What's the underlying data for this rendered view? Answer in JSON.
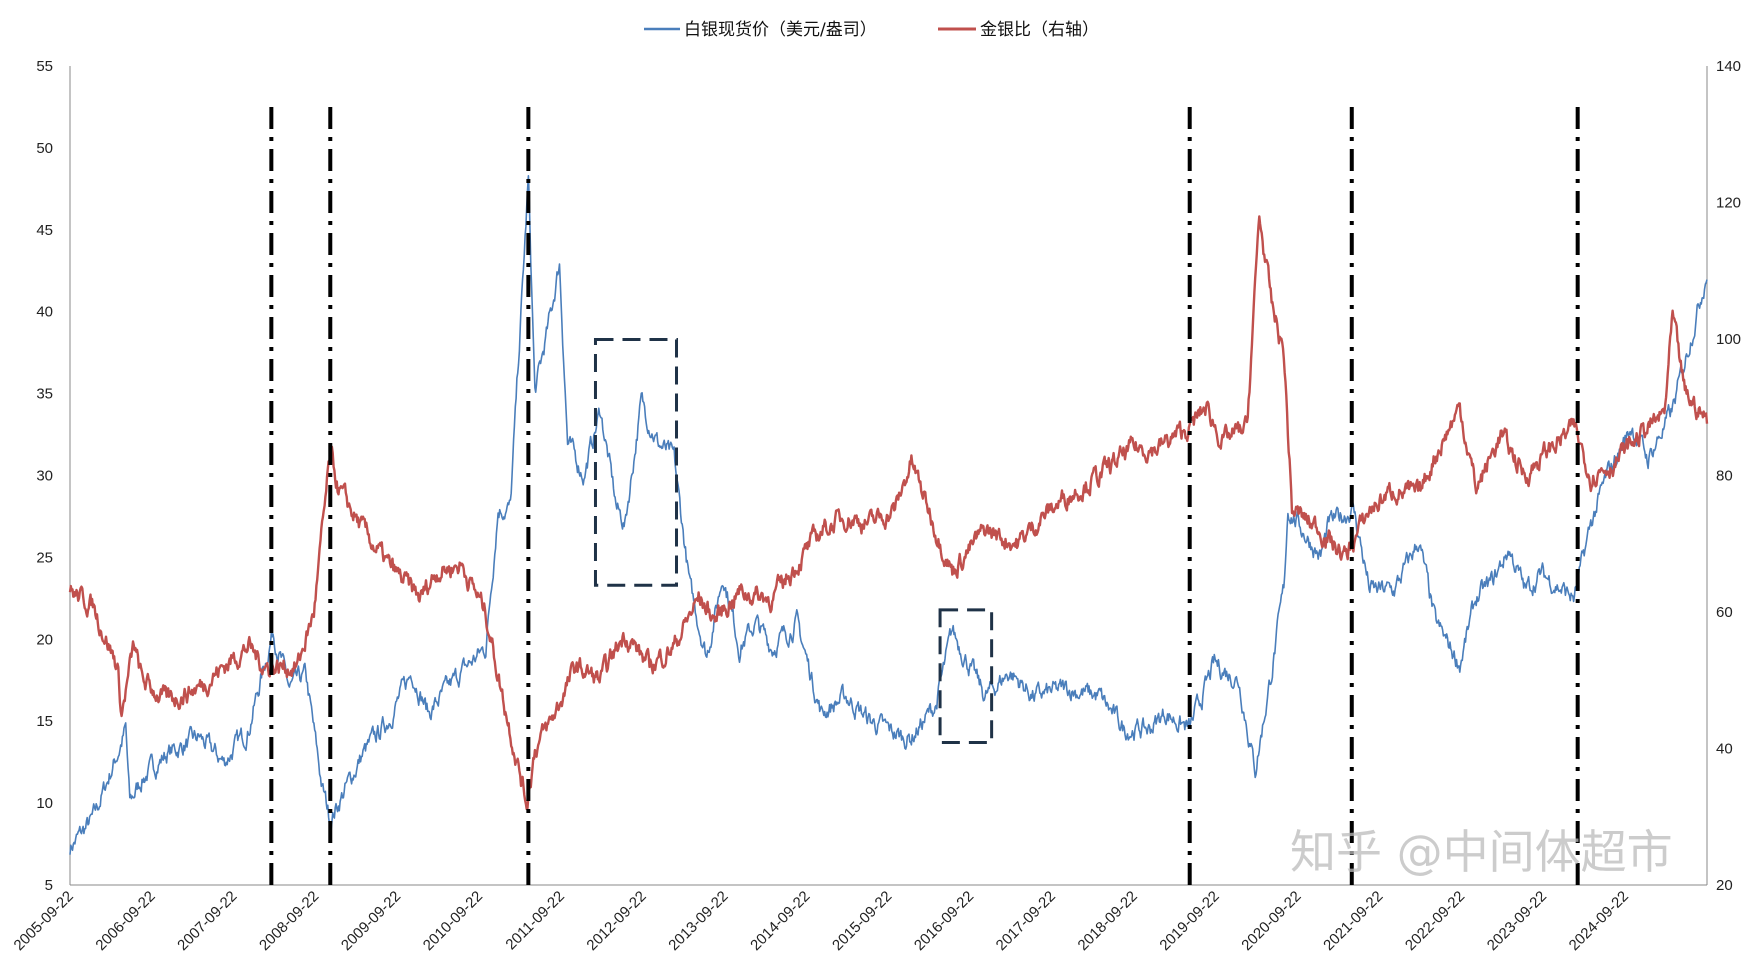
{
  "chart_data": {
    "type": "line",
    "title": "",
    "xlabel": "",
    "ylabel": "",
    "xlim_years": [
      2005.72,
      2025.72
    ],
    "x_tick_labels": [
      "2005-09-22",
      "2006-09-22",
      "2007-09-22",
      "2008-09-22",
      "2009-09-22",
      "2010-09-22",
      "2011-09-22",
      "2012-09-22",
      "2013-09-22",
      "2014-09-22",
      "2015-09-22",
      "2016-09-22",
      "2017-09-22",
      "2018-09-22",
      "2019-09-22",
      "2020-09-22",
      "2021-09-22",
      "2022-09-22",
      "2023-09-22",
      "2024-09-22"
    ],
    "y_left": {
      "range": [
        5,
        55
      ],
      "ticks": [
        5,
        10,
        15,
        20,
        25,
        30,
        35,
        40,
        45,
        50,
        55
      ]
    },
    "y_right": {
      "range": [
        20,
        140
      ],
      "ticks": [
        20,
        40,
        60,
        80,
        100,
        120,
        140
      ]
    },
    "legend_position": "top-center",
    "grid": false,
    "series": [
      {
        "name": "白银现货价（美元/盎司）",
        "axis": "left",
        "color": "#4a7ebb",
        "points": [
          [
            2005.72,
            7.3
          ],
          [
            2006.0,
            9
          ],
          [
            2006.3,
            13
          ],
          [
            2006.4,
            14.5
          ],
          [
            2006.45,
            10
          ],
          [
            2006.6,
            11.5
          ],
          [
            2006.9,
            13
          ],
          [
            2007.3,
            14
          ],
          [
            2007.6,
            12.5
          ],
          [
            2007.9,
            14.5
          ],
          [
            2008.2,
            20.5
          ],
          [
            2008.4,
            17
          ],
          [
            2008.6,
            17.8
          ],
          [
            2008.8,
            11
          ],
          [
            2008.9,
            9
          ],
          [
            2009.1,
            11
          ],
          [
            2009.3,
            13
          ],
          [
            2009.6,
            15
          ],
          [
            2009.9,
            18
          ],
          [
            2010.1,
            15.5
          ],
          [
            2010.5,
            18
          ],
          [
            2010.8,
            19.5
          ],
          [
            2010.95,
            28
          ],
          [
            2011.1,
            28
          ],
          [
            2011.32,
            48
          ],
          [
            2011.4,
            35
          ],
          [
            2011.6,
            40
          ],
          [
            2011.7,
            43
          ],
          [
            2011.8,
            32
          ],
          [
            2012.0,
            30
          ],
          [
            2012.2,
            34
          ],
          [
            2012.4,
            28
          ],
          [
            2012.5,
            27
          ],
          [
            2012.7,
            34.5
          ],
          [
            2012.9,
            32
          ],
          [
            2013.1,
            31
          ],
          [
            2013.3,
            23
          ],
          [
            2013.5,
            19
          ],
          [
            2013.7,
            24
          ],
          [
            2013.9,
            19.5
          ],
          [
            2014.1,
            21
          ],
          [
            2014.3,
            19.5
          ],
          [
            2014.6,
            21
          ],
          [
            2014.9,
            15.5
          ],
          [
            2015.2,
            16.5
          ],
          [
            2015.5,
            15
          ],
          [
            2015.9,
            14
          ],
          [
            2016.0,
            14
          ],
          [
            2016.3,
            16
          ],
          [
            2016.5,
            20.5
          ],
          [
            2016.9,
            16.5
          ],
          [
            2017.2,
            18
          ],
          [
            2017.5,
            16.5
          ],
          [
            2017.9,
            17
          ],
          [
            2018.3,
            16.5
          ],
          [
            2018.6,
            14.5
          ],
          [
            2018.9,
            14.5
          ],
          [
            2019.1,
            15.5
          ],
          [
            2019.4,
            14.5
          ],
          [
            2019.7,
            18.5
          ],
          [
            2020.0,
            17.5
          ],
          [
            2020.2,
            12
          ],
          [
            2020.4,
            18
          ],
          [
            2020.55,
            23
          ],
          [
            2020.6,
            28
          ],
          [
            2021.0,
            25
          ],
          [
            2021.1,
            27
          ],
          [
            2021.4,
            28
          ],
          [
            2021.6,
            23
          ],
          [
            2021.9,
            23
          ],
          [
            2022.2,
            26
          ],
          [
            2022.4,
            21
          ],
          [
            2022.7,
            18.5
          ],
          [
            2022.9,
            22.5
          ],
          [
            2023.1,
            23.5
          ],
          [
            2023.3,
            25.5
          ],
          [
            2023.5,
            23
          ],
          [
            2023.7,
            24
          ],
          [
            2024.1,
            22.5
          ],
          [
            2024.3,
            27
          ],
          [
            2024.5,
            30
          ],
          [
            2024.8,
            33
          ],
          [
            2025.0,
            31
          ],
          [
            2025.3,
            34
          ],
          [
            2025.5,
            38
          ],
          [
            2025.72,
            42.5
          ]
        ]
      },
      {
        "name": "金银比（右轴）",
        "axis": "right",
        "color": "#c0504d",
        "points": [
          [
            2005.72,
            63
          ],
          [
            2006.0,
            61
          ],
          [
            2006.3,
            52
          ],
          [
            2006.35,
            45
          ],
          [
            2006.5,
            55
          ],
          [
            2006.6,
            50
          ],
          [
            2006.9,
            47
          ],
          [
            2007.3,
            49
          ],
          [
            2007.6,
            52
          ],
          [
            2007.9,
            55
          ],
          [
            2008.1,
            52
          ],
          [
            2008.5,
            52
          ],
          [
            2008.7,
            60
          ],
          [
            2008.9,
            83
          ],
          [
            2009.0,
            78
          ],
          [
            2009.3,
            72
          ],
          [
            2009.6,
            67
          ],
          [
            2010.0,
            62
          ],
          [
            2010.2,
            66
          ],
          [
            2010.5,
            67
          ],
          [
            2010.8,
            60
          ],
          [
            2011.0,
            48
          ],
          [
            2011.3,
            32
          ],
          [
            2011.4,
            40
          ],
          [
            2011.6,
            44
          ],
          [
            2011.9,
            52
          ],
          [
            2012.2,
            50
          ],
          [
            2012.5,
            57
          ],
          [
            2012.8,
            52
          ],
          [
            2013.1,
            55
          ],
          [
            2013.4,
            62
          ],
          [
            2013.6,
            59
          ],
          [
            2013.9,
            63
          ],
          [
            2014.3,
            62
          ],
          [
            2014.6,
            67
          ],
          [
            2014.9,
            72
          ],
          [
            2015.2,
            74
          ],
          [
            2015.5,
            73
          ],
          [
            2015.8,
            75
          ],
          [
            2016.0,
            82
          ],
          [
            2016.3,
            72
          ],
          [
            2016.5,
            66
          ],
          [
            2016.9,
            72
          ],
          [
            2017.3,
            70
          ],
          [
            2017.6,
            74
          ],
          [
            2017.9,
            77
          ],
          [
            2018.3,
            80
          ],
          [
            2018.7,
            84
          ],
          [
            2019.0,
            84
          ],
          [
            2019.4,
            87
          ],
          [
            2019.6,
            90
          ],
          [
            2019.8,
            85
          ],
          [
            2020.1,
            87
          ],
          [
            2020.25,
            118
          ],
          [
            2020.4,
            105
          ],
          [
            2020.55,
            98
          ],
          [
            2020.65,
            75
          ],
          [
            2021.0,
            72
          ],
          [
            2021.3,
            68
          ],
          [
            2021.6,
            75
          ],
          [
            2021.9,
            78
          ],
          [
            2022.2,
            77
          ],
          [
            2022.4,
            83
          ],
          [
            2022.7,
            90
          ],
          [
            2022.9,
            78
          ],
          [
            2023.2,
            86
          ],
          [
            2023.5,
            80
          ],
          [
            2023.8,
            84
          ],
          [
            2024.1,
            87
          ],
          [
            2024.3,
            80
          ],
          [
            2024.6,
            82
          ],
          [
            2024.9,
            86
          ],
          [
            2025.2,
            89
          ],
          [
            2025.3,
            103
          ],
          [
            2025.45,
            92
          ],
          [
            2025.72,
            88
          ]
        ]
      }
    ],
    "annotations": {
      "vertical_dashdot_lines_years": [
        2008.18,
        2008.9,
        2011.32,
        2019.4,
        2021.38,
        2024.14
      ],
      "dashed_boxes": [
        {
          "x_years": [
            2012.14,
            2013.13
          ],
          "y_left": [
            23.3,
            38.3
          ]
        },
        {
          "x_years": [
            2016.35,
            2016.98
          ],
          "y_left": [
            13.7,
            21.8
          ]
        }
      ]
    }
  },
  "watermark": "知乎 @中间体超市"
}
